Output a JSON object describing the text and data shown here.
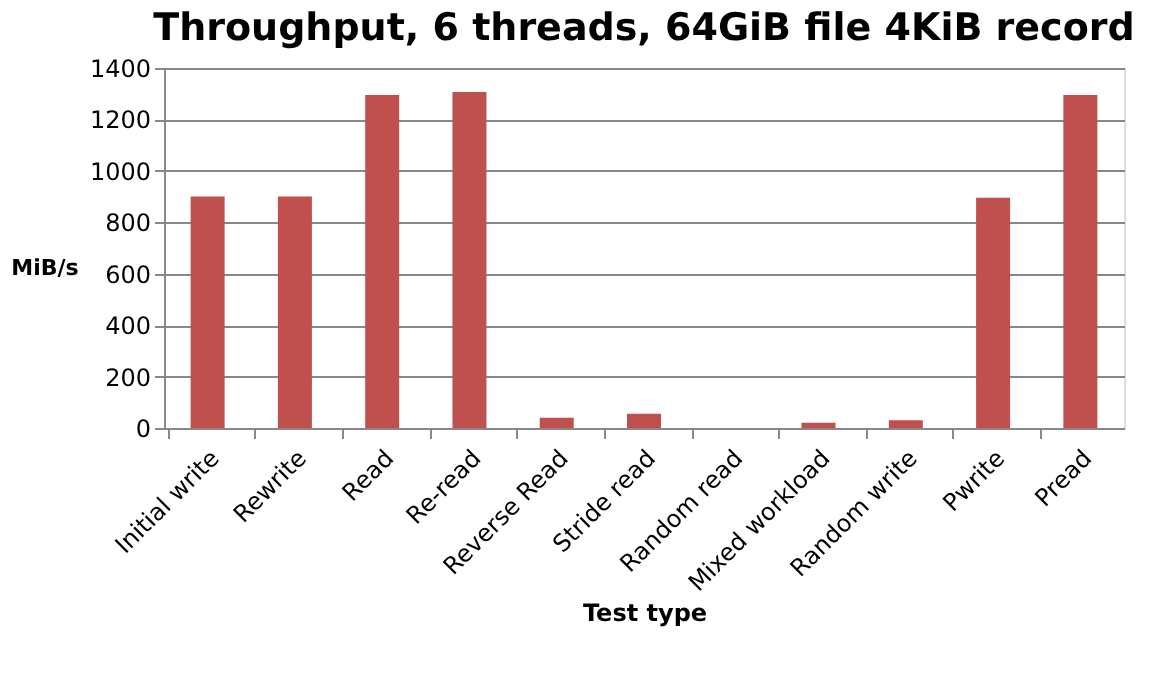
{
  "chart_data": {
    "type": "bar",
    "title": "Throughput, 6 threads, 64GiB file 4KiB record",
    "xlabel": "Test type",
    "ylabel": "MiB/s",
    "categories": [
      "Initial write",
      "Rewrite",
      "Read",
      "Re-read",
      "Reverse Read",
      "Stride read",
      "Random read",
      "Mixed workload",
      "Random write",
      "Pwrite",
      "Pread"
    ],
    "values": [
      900,
      900,
      1295,
      1307,
      40,
      55,
      0,
      20,
      30,
      895,
      1295
    ],
    "color": "#c0504d",
    "ylim": [
      0,
      1400
    ],
    "yticks": [
      0,
      200,
      400,
      600,
      800,
      1000,
      1200,
      1400
    ],
    "grid": "y"
  }
}
